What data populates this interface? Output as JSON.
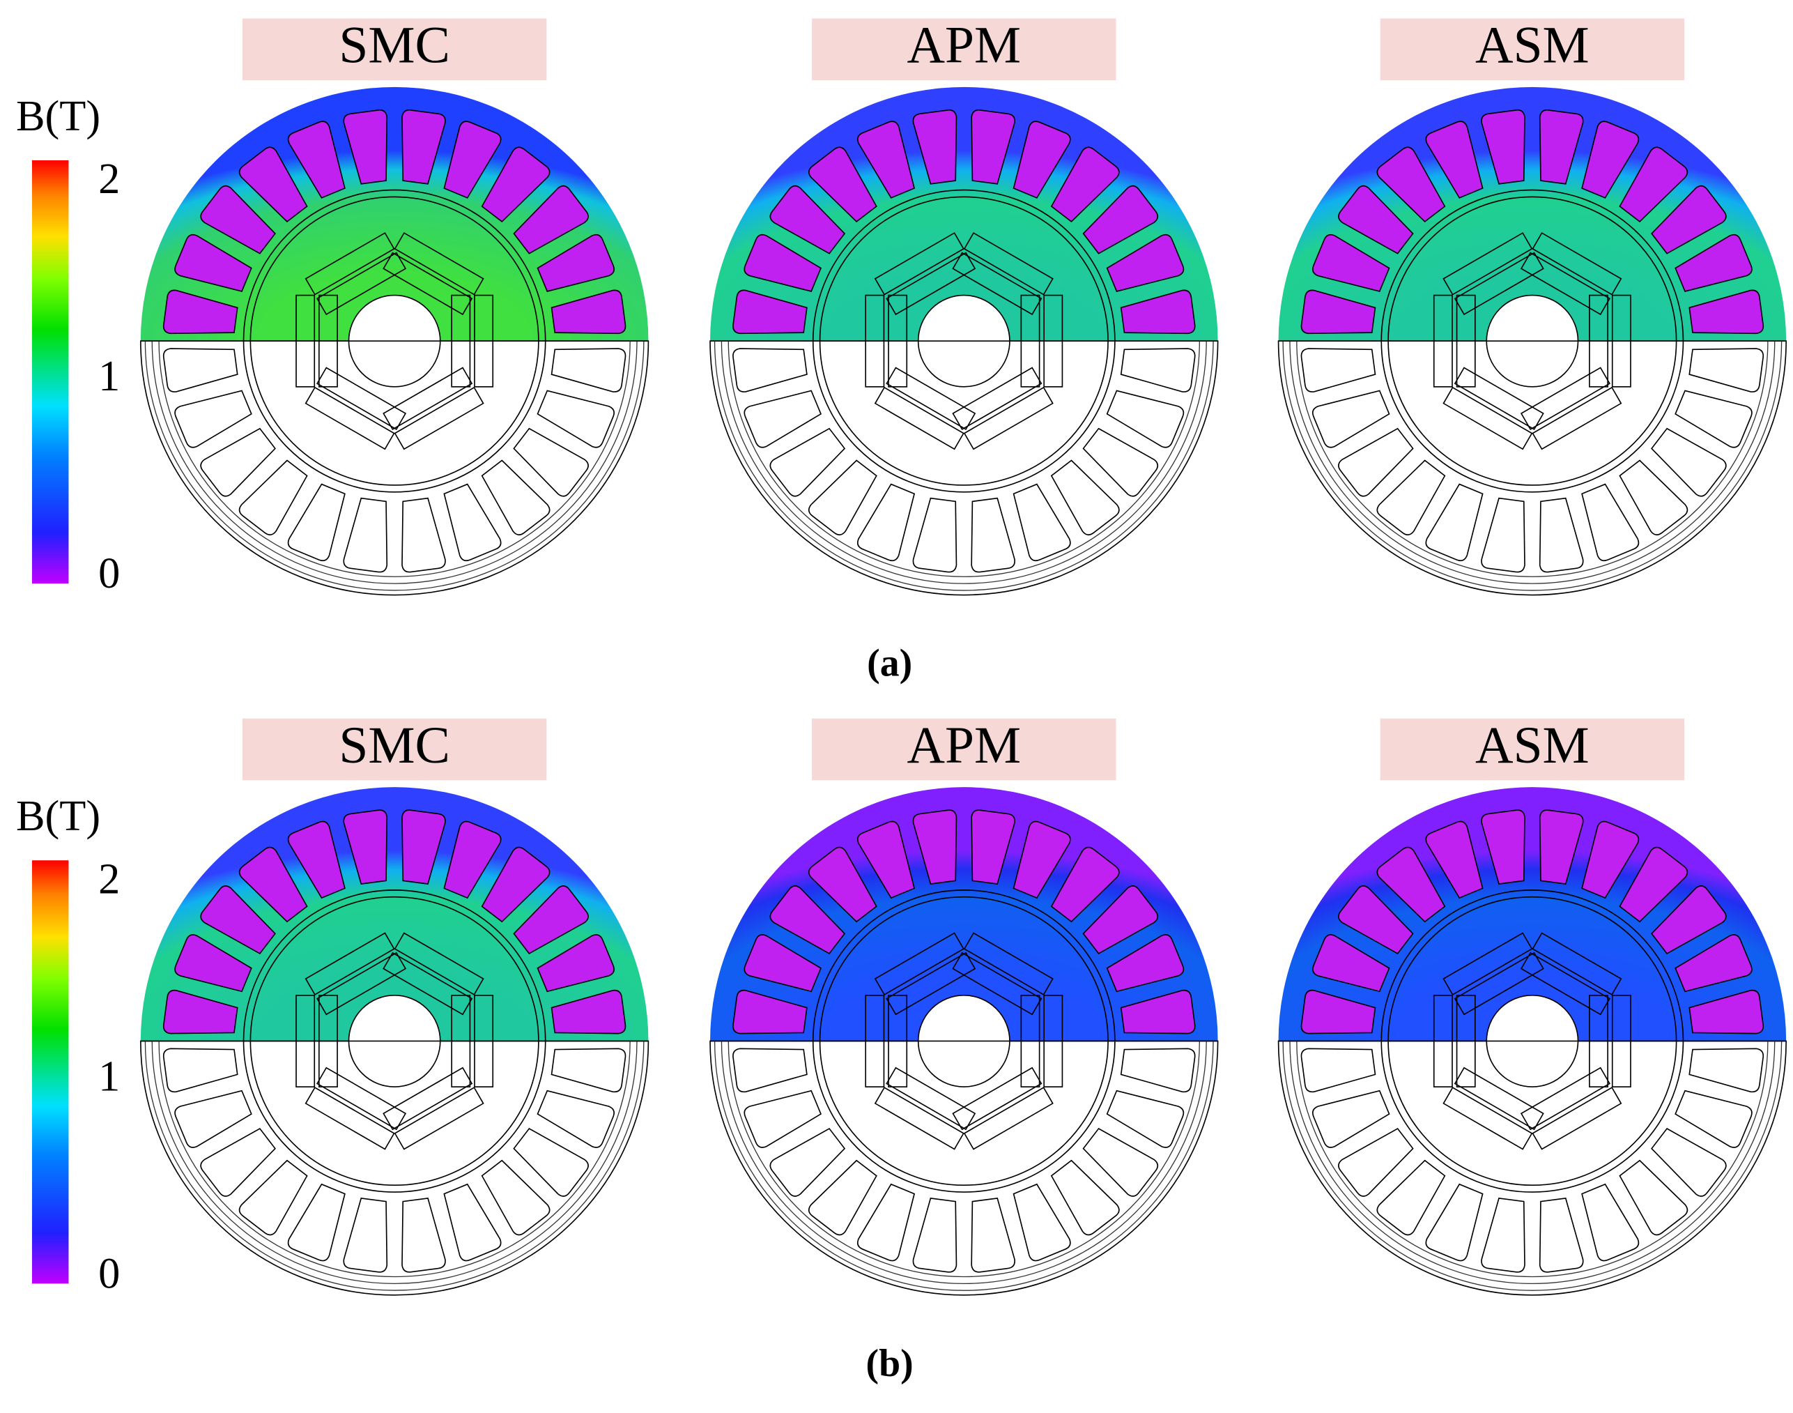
{
  "panels": [
    {
      "label": "(a)",
      "colorbar": {
        "title": "B(T)",
        "ticks": [
          0,
          1,
          2
        ]
      },
      "machines": [
        {
          "title": "SMC"
        },
        {
          "title": "APM"
        },
        {
          "title": "ASM"
        }
      ]
    },
    {
      "label": "(b)",
      "colorbar": {
        "title": "B(T)",
        "ticks": [
          0,
          1,
          2
        ]
      },
      "machines": [
        {
          "title": "SMC"
        },
        {
          "title": "APM"
        },
        {
          "title": "ASM"
        }
      ]
    }
  ]
}
